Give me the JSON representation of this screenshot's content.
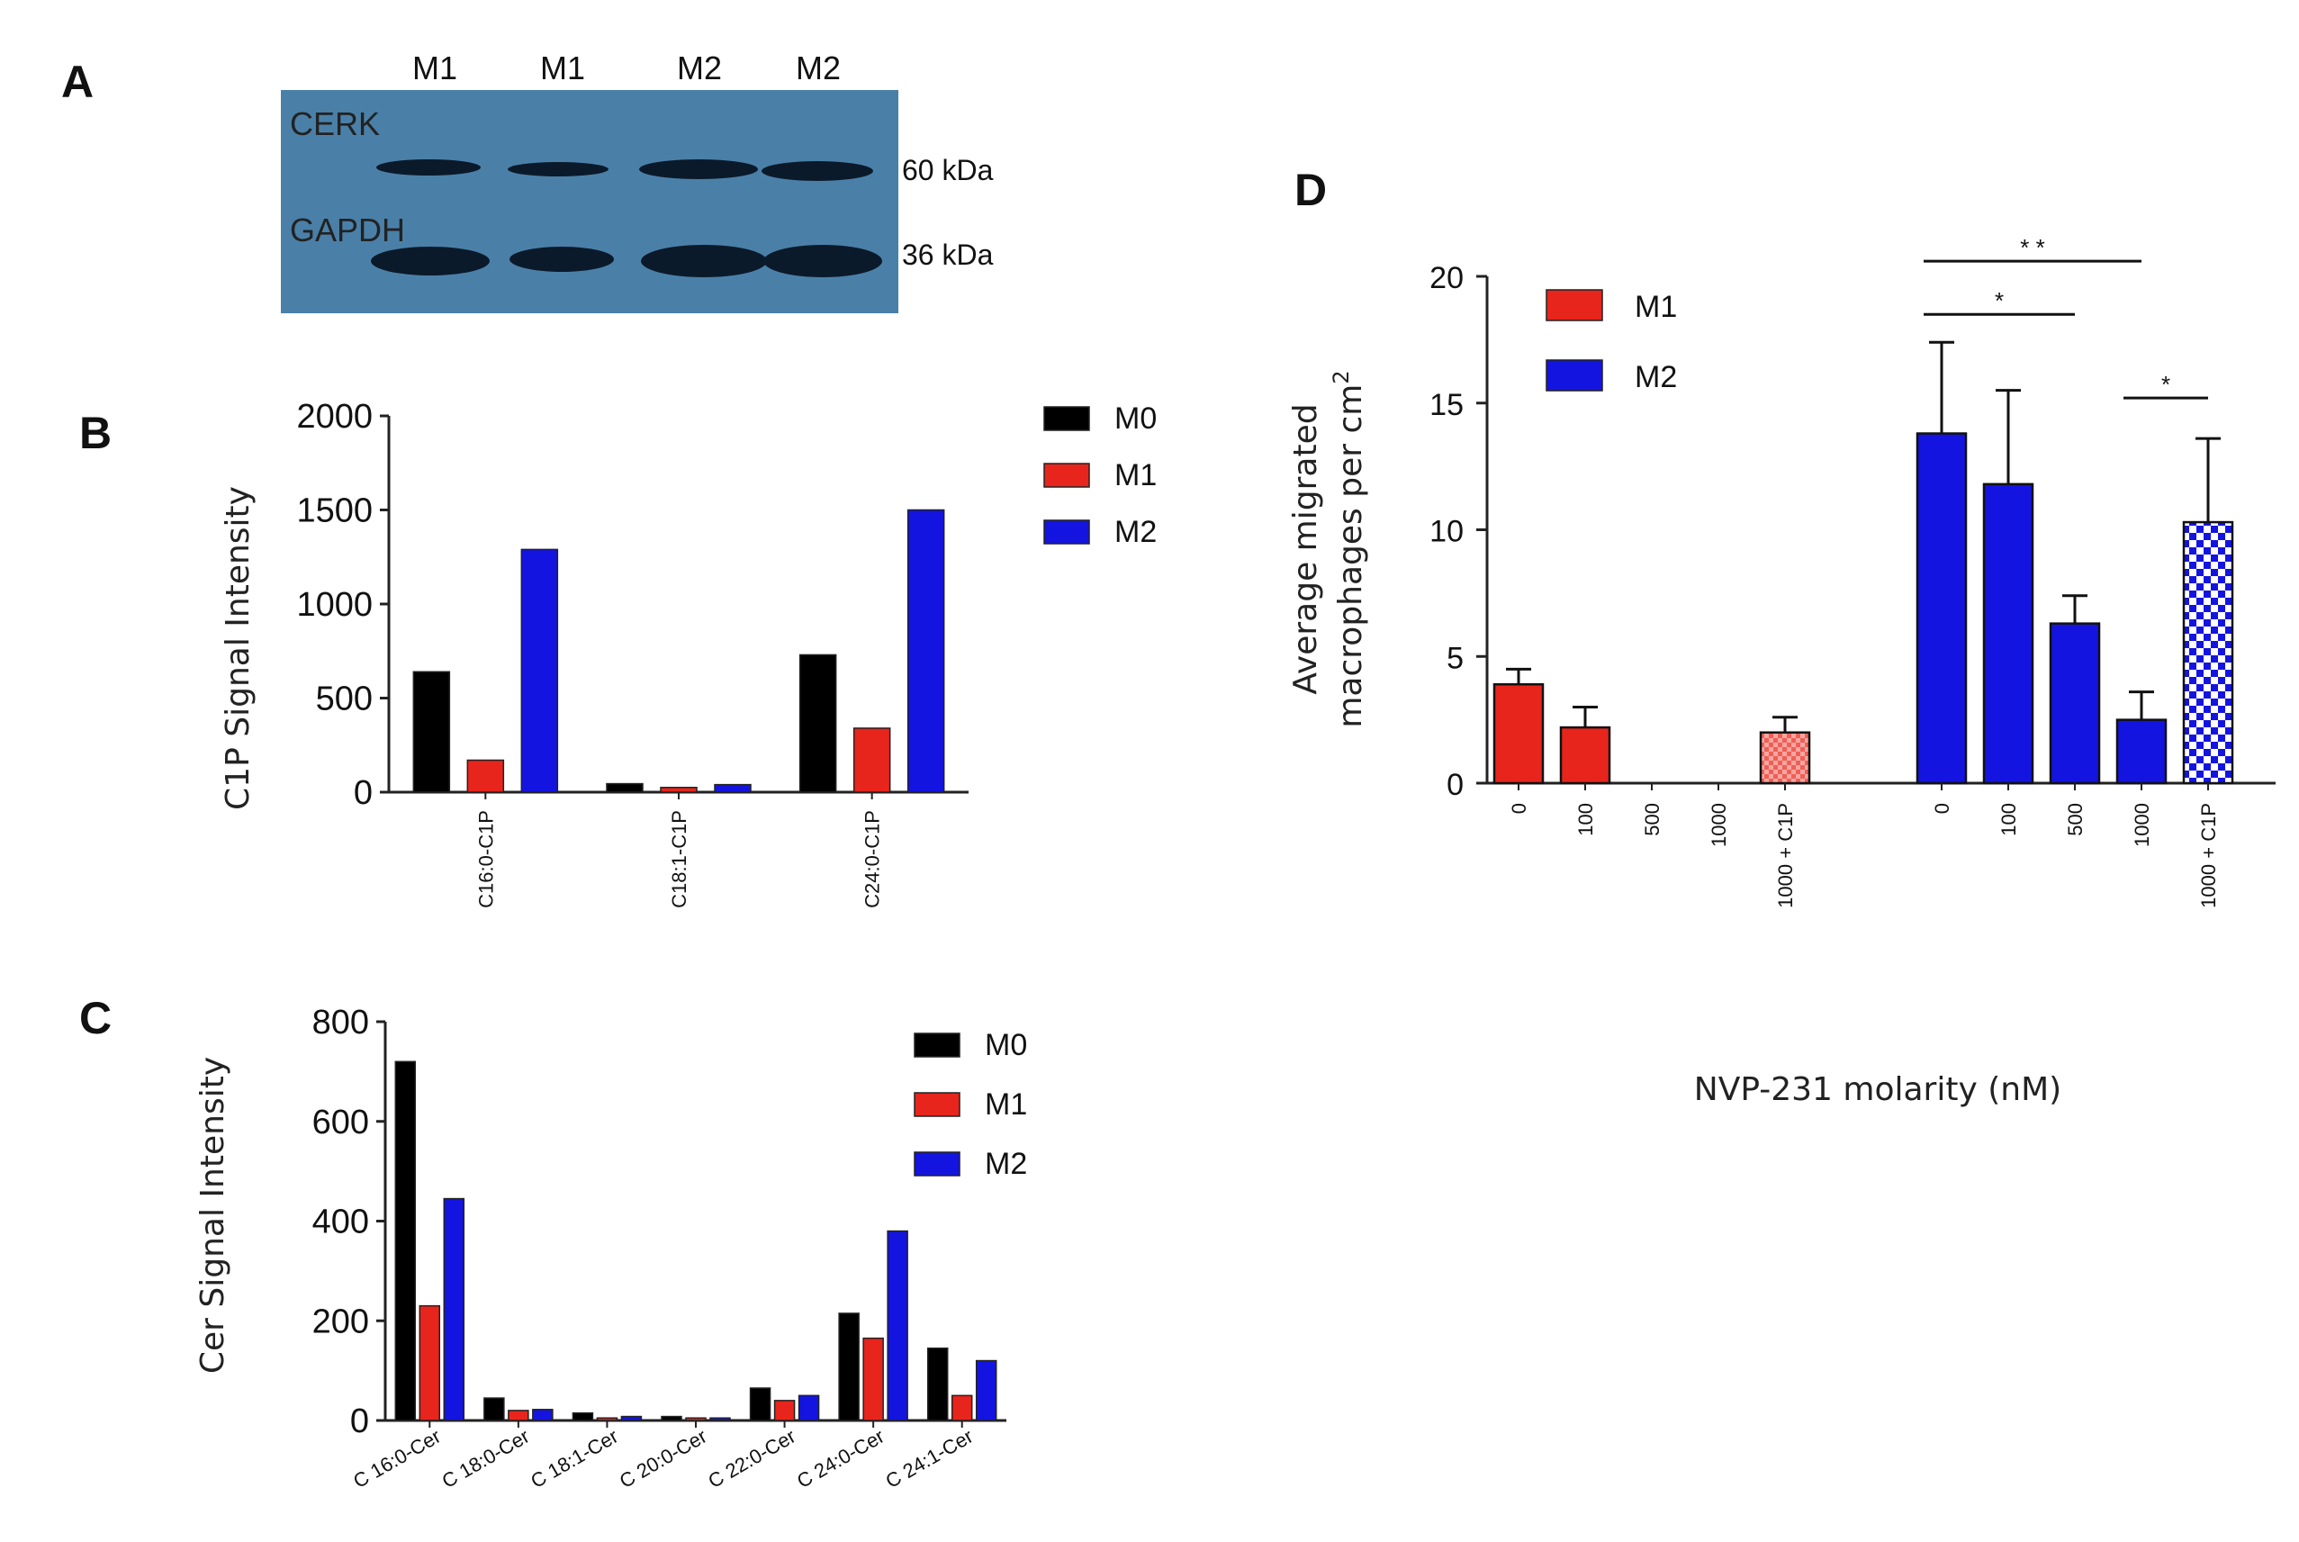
{
  "panels": {
    "a": "A",
    "b": "B",
    "c": "C",
    "d": "D"
  },
  "colors": {
    "M0": "#000000",
    "M1": "#e8251c",
    "M2": "#1414e0",
    "blot_bg": "#4a80a8",
    "band": "#0b1a2a"
  },
  "blot": {
    "lanes": [
      "M1",
      "M1",
      "M2",
      "M2"
    ],
    "rows": [
      {
        "name": "CERK",
        "kda": "60 kDa"
      },
      {
        "name": "GAPDH",
        "kda": "36 kDa"
      }
    ]
  },
  "chart_data": [
    {
      "id": "B",
      "type": "bar",
      "ylabel": "C1P Signal Intensity",
      "ylim": [
        0,
        2000
      ],
      "yticks": [
        "0",
        "500",
        "1000",
        "1500",
        "2000"
      ],
      "categories": [
        "C16:0-C1P",
        "C18:1-C1P",
        "C24:0-C1P"
      ],
      "series": [
        {
          "name": "M0",
          "values": [
            640,
            45,
            730
          ]
        },
        {
          "name": "M1",
          "values": [
            170,
            25,
            340
          ]
        },
        {
          "name": "M2",
          "values": [
            1290,
            40,
            1500
          ]
        }
      ],
      "legend": [
        "M0",
        "M1",
        "M2"
      ]
    },
    {
      "id": "C",
      "type": "bar",
      "ylabel": "Cer Signal Intensity",
      "ylim": [
        0,
        800
      ],
      "yticks": [
        "0",
        "200",
        "400",
        "600",
        "800"
      ],
      "categories": [
        "C 16:0-Cer",
        "C 18:0-Cer",
        "C 18:1-Cer",
        "C 20:0-Cer",
        "C 22:0-Cer",
        "C 24:0-Cer",
        "C 24:1-Cer"
      ],
      "series": [
        {
          "name": "M0",
          "values": [
            720,
            45,
            15,
            8,
            65,
            215,
            145
          ]
        },
        {
          "name": "M1",
          "values": [
            230,
            20,
            5,
            5,
            40,
            165,
            50
          ]
        },
        {
          "name": "M2",
          "values": [
            445,
            22,
            8,
            5,
            50,
            380,
            120
          ]
        }
      ],
      "legend": [
        "M0",
        "M1",
        "M2"
      ]
    },
    {
      "id": "D",
      "type": "bar",
      "ylabel_line1": "Average migrated",
      "ylabel_line2": "macrophages per cm",
      "ylabel_sup": "2",
      "xlabel": "NVP-231 molarity (nM)",
      "ylim": [
        0,
        20
      ],
      "yticks": [
        "0",
        "5",
        "10",
        "15",
        "20"
      ],
      "groups": [
        {
          "name": "M1",
          "categories": [
            "0",
            "100",
            "500",
            "1000",
            "1000 + C1P"
          ],
          "values": [
            3.9,
            2.2,
            0,
            0,
            2.0
          ],
          "errors": [
            0.6,
            0.8,
            0,
            0,
            0.6
          ]
        },
        {
          "name": "M2",
          "categories": [
            "0",
            "100",
            "500",
            "1000",
            "1000 + C1P"
          ],
          "values": [
            13.8,
            11.8,
            6.3,
            2.5,
            10.3
          ],
          "errors": [
            3.6,
            3.7,
            1.1,
            1.1,
            3.3
          ]
        }
      ],
      "significance": [
        {
          "label": "* *",
          "group": "M2",
          "from": 0,
          "to": 3
        },
        {
          "label": "*",
          "group": "M2",
          "from": 0,
          "to": 2
        },
        {
          "label": "*",
          "group": "M2",
          "from": 3,
          "to": 4
        }
      ],
      "legend": [
        "M1",
        "M2"
      ]
    }
  ]
}
